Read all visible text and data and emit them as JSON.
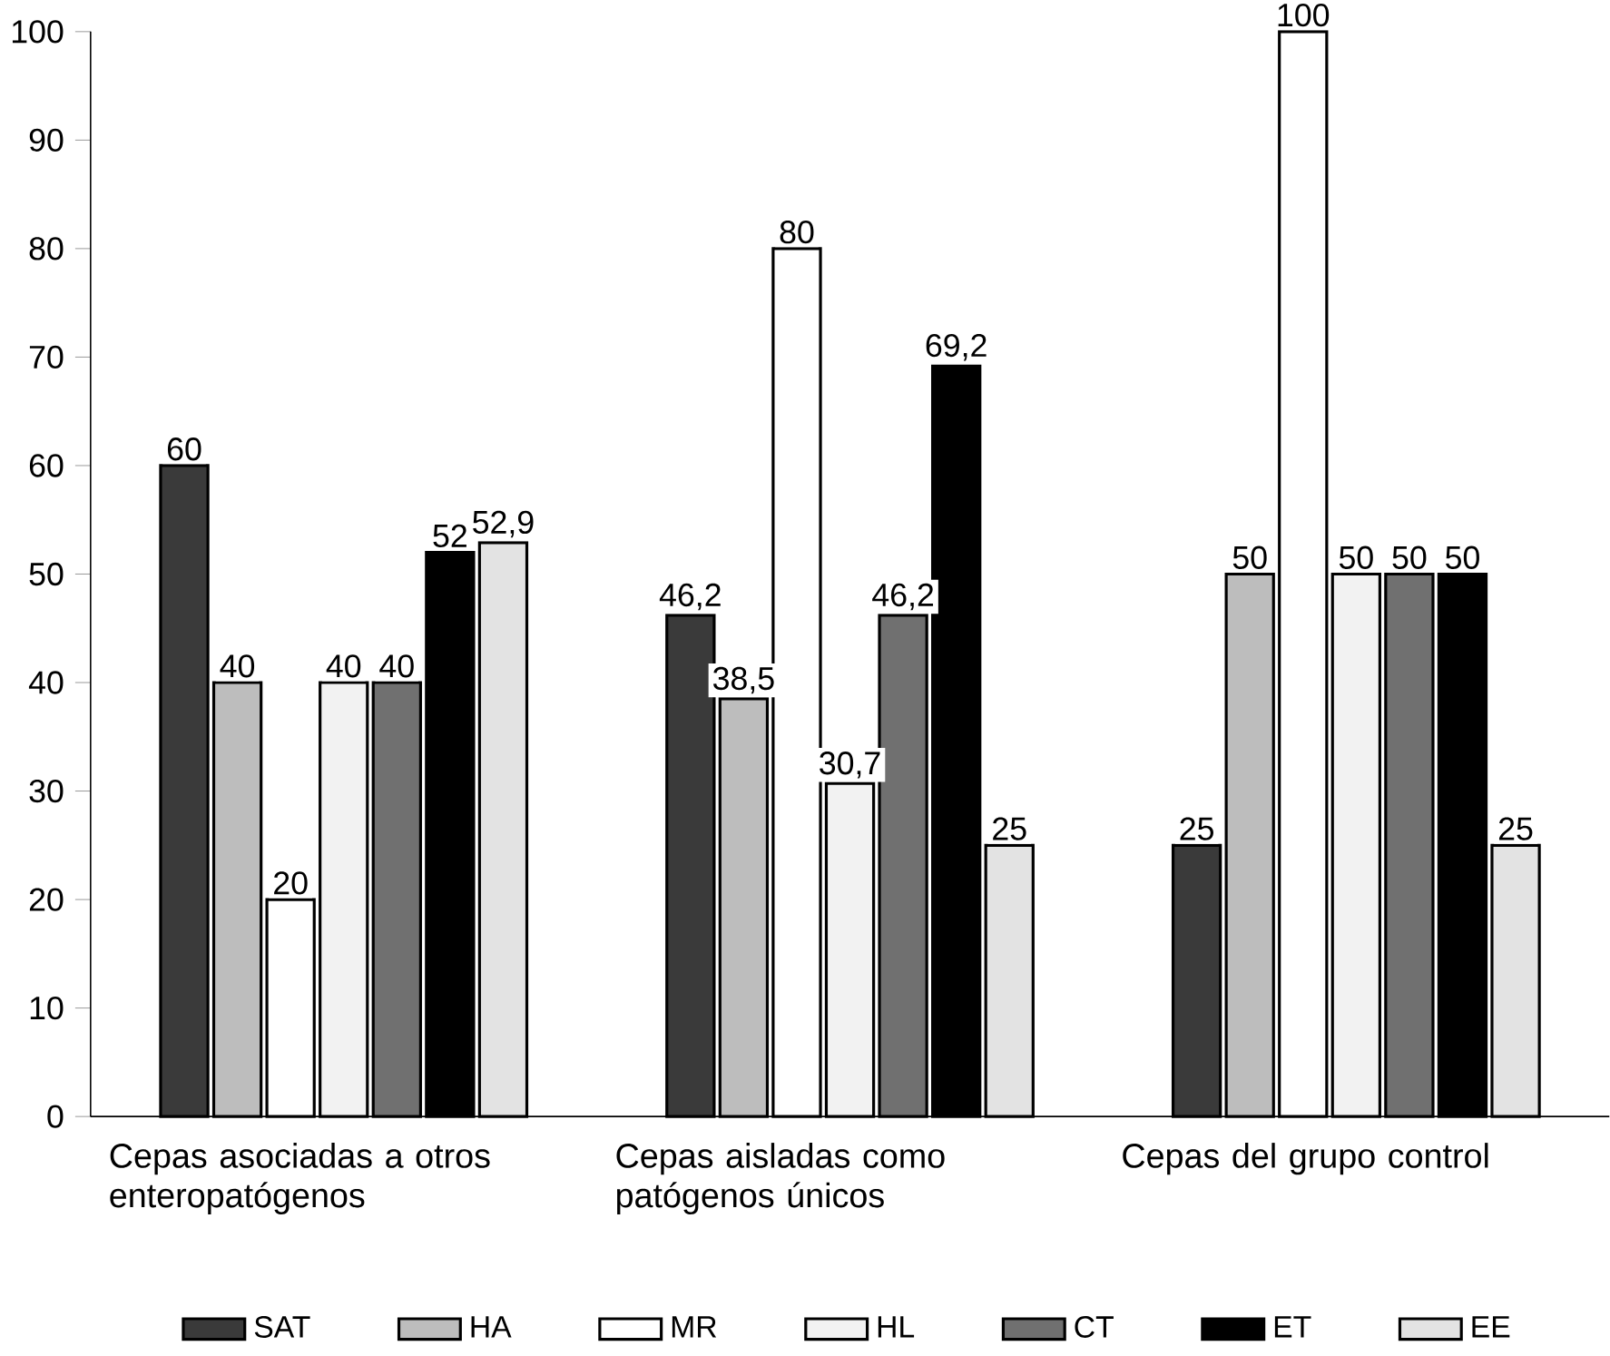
{
  "chart_data": {
    "type": "bar",
    "categories": [
      "Cepas asociadas a otros enteropatógenos",
      "Cepas aisladas como patógenos únicos",
      "Cepas del grupo control"
    ],
    "series": [
      {
        "name": "SAT",
        "color": "#3a3a3a",
        "values": [
          60,
          46.2,
          25
        ],
        "value_labels": [
          "60",
          "46,2",
          "25"
        ]
      },
      {
        "name": "HA",
        "color": "#bdbdbd",
        "values": [
          40,
          38.5,
          50
        ],
        "value_labels": [
          "40",
          "38,5",
          "50"
        ]
      },
      {
        "name": "MR",
        "color": "#ffffff",
        "values": [
          20,
          80,
          100
        ],
        "value_labels": [
          "20",
          "80",
          "100"
        ]
      },
      {
        "name": "HL",
        "color": "#f2f2f2",
        "values": [
          40,
          30.7,
          50
        ],
        "value_labels": [
          "40",
          "30,7",
          "50"
        ]
      },
      {
        "name": "CT",
        "color": "#707070",
        "values": [
          40,
          46.2,
          50
        ],
        "value_labels": [
          "40",
          "46,2",
          "50"
        ]
      },
      {
        "name": "ET",
        "color": "#000000",
        "values": [
          52,
          69.2,
          50
        ],
        "value_labels": [
          "52",
          "69,2",
          "50"
        ]
      },
      {
        "name": "EE",
        "color": "#e3e3e3",
        "values": [
          52.9,
          25,
          25
        ],
        "value_labels": [
          "52,9",
          "25",
          "25"
        ]
      }
    ],
    "ylim": [
      0,
      100
    ],
    "yticks": [
      0,
      10,
      20,
      30,
      40,
      50,
      60,
      70,
      80,
      90,
      100
    ],
    "grid": false,
    "legend": "bottom"
  }
}
